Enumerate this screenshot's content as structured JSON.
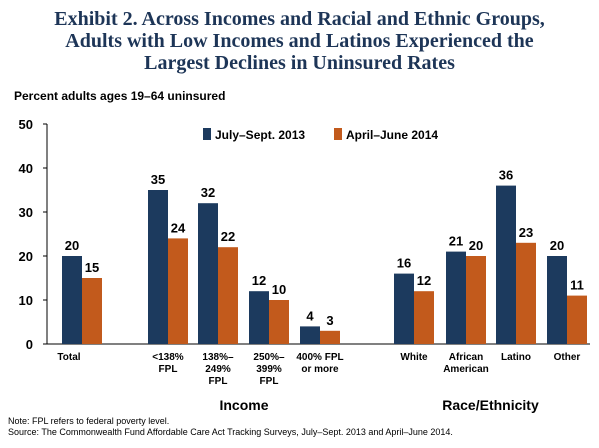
{
  "title_lines": [
    "Exhibit 2. Across Incomes and Racial and Ethnic Groups,",
    "Adults with Low Incomes and Latinos Experienced the",
    "Largest Declines in Uninsured Rates"
  ],
  "subtitle": "Percent adults ages 19–64 uninsured",
  "colors": {
    "series1": "#1c3a5e",
    "series2": "#c25a1c",
    "title": "#1d3557"
  },
  "chart_data": {
    "type": "bar",
    "categories": [
      [
        "Total"
      ],
      [
        "<138%",
        "FPL"
      ],
      [
        "138%–",
        "249%",
        "FPL"
      ],
      [
        "250%–",
        "399%",
        "FPL"
      ],
      [
        "400% FPL",
        "or more"
      ],
      [
        "White"
      ],
      [
        "African",
        "American"
      ],
      [
        "Latino"
      ],
      [
        "Other"
      ]
    ],
    "series": [
      {
        "name": "July–Sept. 2013",
        "values": [
          20,
          35,
          32,
          12,
          4,
          16,
          21,
          36,
          20
        ]
      },
      {
        "name": "April–June 2014",
        "values": [
          15,
          24,
          22,
          10,
          3,
          12,
          20,
          23,
          11
        ]
      }
    ],
    "ylim": [
      0,
      50
    ],
    "yticks": [
      0,
      10,
      20,
      30,
      40,
      50
    ],
    "groups": [
      {
        "label": "Income",
        "from": 1,
        "to": 4
      },
      {
        "label": "Race/Ethnicity",
        "from": 5,
        "to": 8
      }
    ],
    "legend": "top-center",
    "grid": false
  },
  "footer": {
    "note": "Note: FPL refers to federal poverty level.",
    "source": "Source: The Commonwealth Fund Affordable Care Act Tracking Surveys, July–Sept. 2013 and April–June 2014."
  }
}
